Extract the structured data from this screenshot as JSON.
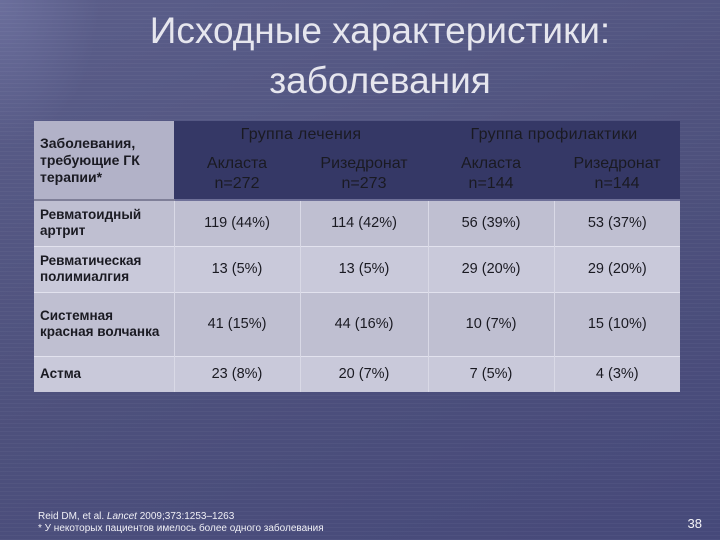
{
  "slide": {
    "title_line1": "Исходные характеристики:",
    "title_line2": "заболевания",
    "page_number": "38"
  },
  "table": {
    "corner_header": "Заболевания, требующие ГК терапии*",
    "groups": [
      {
        "label": "Группа лечения"
      },
      {
        "label": "Группа профилактики"
      }
    ],
    "columns": [
      {
        "drug": "Акласта",
        "n": "n=272"
      },
      {
        "drug": "Ризедронат",
        "n": "n=273"
      },
      {
        "drug": "Акласта",
        "n": "n=144"
      },
      {
        "drug": "Ризедронат",
        "n": "n=144"
      }
    ],
    "rows": [
      {
        "label": "Ревматоидный артрит",
        "values": [
          "119 (44%)",
          "114 (42%)",
          "56 (39%)",
          "53 (37%)"
        ]
      },
      {
        "label": "Ревматическая полимиалгия",
        "values": [
          "13 (5%)",
          "13 (5%)",
          "29 (20%)",
          "29 (20%)"
        ]
      },
      {
        "label": "Системная красная волчанка",
        "values": [
          "41 (15%)",
          "44 (16%)",
          "10 (7%)",
          "15 (10%)"
        ]
      },
      {
        "label": "Астма",
        "values": [
          "23 (8%)",
          "20 (7%)",
          "7 (5%)",
          "4 (3%)"
        ]
      }
    ]
  },
  "footnote": {
    "citation_prefix": "Reid DM, et al. ",
    "citation_journal": "Lancet",
    "citation_suffix": " 2009;373:1253–1263",
    "note": "* У некоторых пациентов имелось более одного заболевания"
  },
  "colors": {
    "background": "#4d507c",
    "header_fill": "#353866",
    "body_fill": "#bfbfd1"
  }
}
